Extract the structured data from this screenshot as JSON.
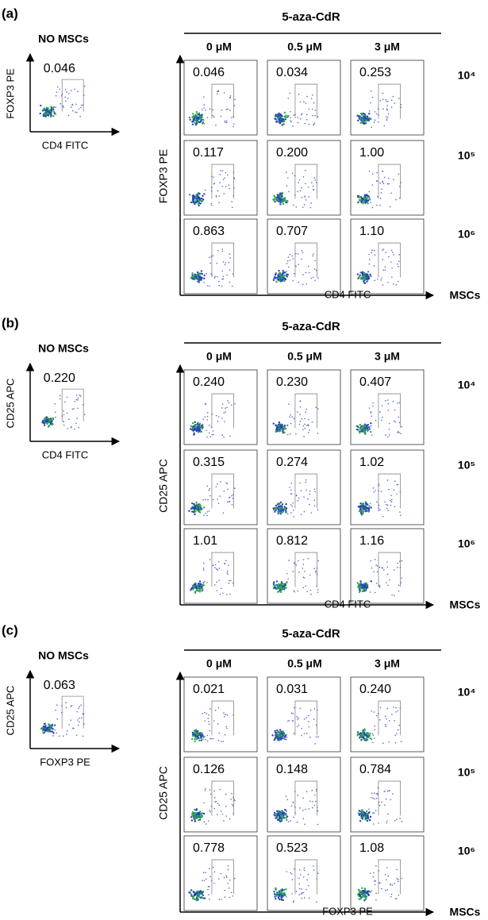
{
  "panels": [
    {
      "label": "(a)",
      "treatment": "5-aza-CdR",
      "doses": [
        "0 μM",
        "0.5 μM",
        "3 μM"
      ],
      "no_mscs": {
        "title": "NO MSCs",
        "value": "0.046",
        "y_label": "FOXP3 PE",
        "x_label": "CD4 FITC"
      },
      "values": [
        [
          "0.046",
          "0.034",
          "0.253"
        ],
        [
          "0.117",
          "0.200",
          "1.00"
        ],
        [
          "0.863",
          "0.707",
          "1.10"
        ]
      ],
      "rows": [
        "10⁴",
        "10⁵",
        "10⁶"
      ],
      "y_label": "FOXP3 PE",
      "x_label": "CD4 FITC",
      "x_arrow_label": "MSCs"
    },
    {
      "label": "(b)",
      "treatment": "5-aza-CdR",
      "doses": [
        "0 μM",
        "0.5 μM",
        "3 μM"
      ],
      "no_mscs": {
        "title": "NO MSCs",
        "value": "0.220",
        "y_label": "CD25 APC",
        "x_label": "CD4 FITC"
      },
      "values": [
        [
          "0.240",
          "0.230",
          "0.407"
        ],
        [
          "0.315",
          "0.274",
          "1.02"
        ],
        [
          "1.01",
          "0.812",
          "1.16"
        ]
      ],
      "rows": [
        "10⁴",
        "10⁵",
        "10⁶"
      ],
      "y_label": "CD25 APC",
      "x_label": "CD4 FITC",
      "x_arrow_label": "MSCs"
    },
    {
      "label": "(c)",
      "treatment": "5-aza-CdR",
      "doses": [
        "0 μM",
        "0.5 μM",
        "3 μM"
      ],
      "no_mscs": {
        "title": "NO MSCs",
        "value": "0.063",
        "y_label": "CD25 APC",
        "x_label": "FOXP3 PE"
      },
      "values": [
        [
          "0.021",
          "0.031",
          "0.240"
        ],
        [
          "0.126",
          "0.148",
          "0.784"
        ],
        [
          "0.778",
          "0.523",
          "1.08"
        ]
      ],
      "rows": [
        "10⁴",
        "10⁵",
        "10⁶"
      ],
      "y_label": "CD25 APC",
      "x_label": "FOXP3 PE",
      "x_arrow_label": "MSCs"
    }
  ]
}
